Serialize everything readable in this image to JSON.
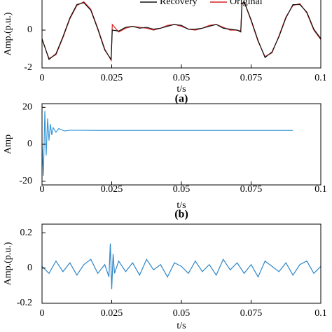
{
  "chart_data": [
    {
      "type": "line",
      "caption": "(a)",
      "xlabel": "t/s",
      "ylabel": "Amp.(p.u.)",
      "xlim": [
        0,
        0.1
      ],
      "xticks": [
        0,
        0.025,
        0.05,
        0.075,
        0.1
      ],
      "ylim": [
        -2,
        2
      ],
      "yticks": [
        -2,
        0
      ],
      "legend": "top",
      "x": [
        0,
        0.0025,
        0.005,
        0.0075,
        0.01,
        0.0125,
        0.015,
        0.0175,
        0.02,
        0.0225,
        0.0248,
        0.0252,
        0.0275,
        0.03,
        0.0325,
        0.035,
        0.0375,
        0.04,
        0.0425,
        0.045,
        0.0475,
        0.05,
        0.0525,
        0.055,
        0.0575,
        0.06,
        0.0625,
        0.065,
        0.0675,
        0.07,
        0.0713,
        0.0717,
        0.0725,
        0.075,
        0.0775,
        0.08,
        0.0825,
        0.085,
        0.0875,
        0.09,
        0.0925,
        0.095,
        0.0975,
        0.1
      ],
      "series": [
        {
          "name": "Original",
          "color": "#d62020",
          "values": [
            -0.5,
            -1.5,
            -1.3,
            -0.4,
            0.6,
            1.3,
            1.5,
            1.1,
            0.1,
            -1.0,
            -1.6,
            0.3,
            -0.1,
            0.1,
            0.2,
            0.15,
            0.1,
            0.0,
            0.1,
            0.25,
            0.3,
            0.2,
            0.05,
            0.0,
            0.1,
            0.25,
            0.3,
            0.15,
            0.0,
            0.0,
            -0.05,
            1.4,
            1.5,
            0.5,
            -0.6,
            -1.4,
            -1.2,
            -0.3,
            0.7,
            1.3,
            1.4,
            0.9,
            0.0,
            -0.5
          ]
        },
        {
          "name": "Recovery",
          "color": "#111111",
          "values": [
            -0.45,
            -1.55,
            -1.25,
            -0.35,
            0.65,
            1.35,
            1.45,
            1.05,
            0.05,
            -1.05,
            -1.55,
            0.0,
            -0.05,
            0.15,
            0.2,
            0.1,
            0.15,
            0.05,
            0.1,
            0.2,
            0.3,
            0.25,
            0.05,
            0.05,
            0.1,
            0.2,
            0.3,
            0.1,
            0.05,
            0.0,
            -0.1,
            1.35,
            1.5,
            0.55,
            -0.55,
            -1.45,
            -1.15,
            -0.35,
            0.65,
            1.35,
            1.35,
            0.95,
            0.05,
            -0.45
          ]
        }
      ]
    },
    {
      "type": "line",
      "caption": "(b)",
      "xlabel": "t/s",
      "ylabel": "Amp",
      "xlim": [
        0,
        0.1
      ],
      "xticks": [
        0,
        0.025,
        0.05,
        0.075,
        0.1
      ],
      "ylim": [
        -22,
        22
      ],
      "yticks": [
        -20,
        0,
        20
      ],
      "x": [
        0,
        0.0005,
        0.001,
        0.0015,
        0.002,
        0.0025,
        0.003,
        0.0035,
        0.004,
        0.005,
        0.006,
        0.008,
        0.01,
        0.02,
        0.04,
        0.06,
        0.08,
        0.09
      ],
      "series": [
        {
          "color": "#3a9ad9",
          "values": [
            0,
            -17,
            18,
            -6,
            14,
            2,
            11,
            5,
            9,
            6.5,
            8.5,
            7.2,
            7.6,
            7.5,
            7.5,
            7.5,
            7.5,
            7.5
          ]
        }
      ]
    },
    {
      "type": "line",
      "xlabel": "t/s",
      "ylabel": "Amp.(p.u.)",
      "xlim": [
        0,
        0.1
      ],
      "xticks": [
        0,
        0.025,
        0.05,
        0.075,
        0.1
      ],
      "ylim": [
        -0.2,
        0.25
      ],
      "yticks": [
        -0.2,
        0,
        0.2
      ],
      "x": [
        0,
        0.0025,
        0.005,
        0.0075,
        0.01,
        0.0125,
        0.015,
        0.0175,
        0.02,
        0.0225,
        0.024,
        0.0245,
        0.025,
        0.0255,
        0.026,
        0.0275,
        0.03,
        0.0325,
        0.035,
        0.0375,
        0.04,
        0.0425,
        0.045,
        0.0475,
        0.05,
        0.0525,
        0.055,
        0.0575,
        0.06,
        0.0625,
        0.065,
        0.0675,
        0.07,
        0.0725,
        0.075,
        0.0775,
        0.08,
        0.0825,
        0.085,
        0.0875,
        0.09,
        0.0925,
        0.095,
        0.0975,
        0.1
      ],
      "series": [
        {
          "color": "#2f86c8",
          "values": [
            0.01,
            -0.03,
            0.04,
            -0.02,
            0.03,
            -0.04,
            0.02,
            0.05,
            -0.03,
            0.02,
            -0.05,
            0.14,
            -0.12,
            0.08,
            -0.03,
            0.04,
            -0.02,
            0.03,
            -0.04,
            0.05,
            -0.01,
            0.02,
            -0.05,
            0.03,
            0.01,
            -0.03,
            0.04,
            -0.02,
            0.02,
            -0.04,
            0.05,
            -0.01,
            0.03,
            -0.03,
            0.02,
            -0.05,
            0.04,
            0.01,
            -0.02,
            0.03,
            -0.04,
            0.02,
            0.04,
            -0.03,
            0.01
          ]
        }
      ]
    }
  ]
}
